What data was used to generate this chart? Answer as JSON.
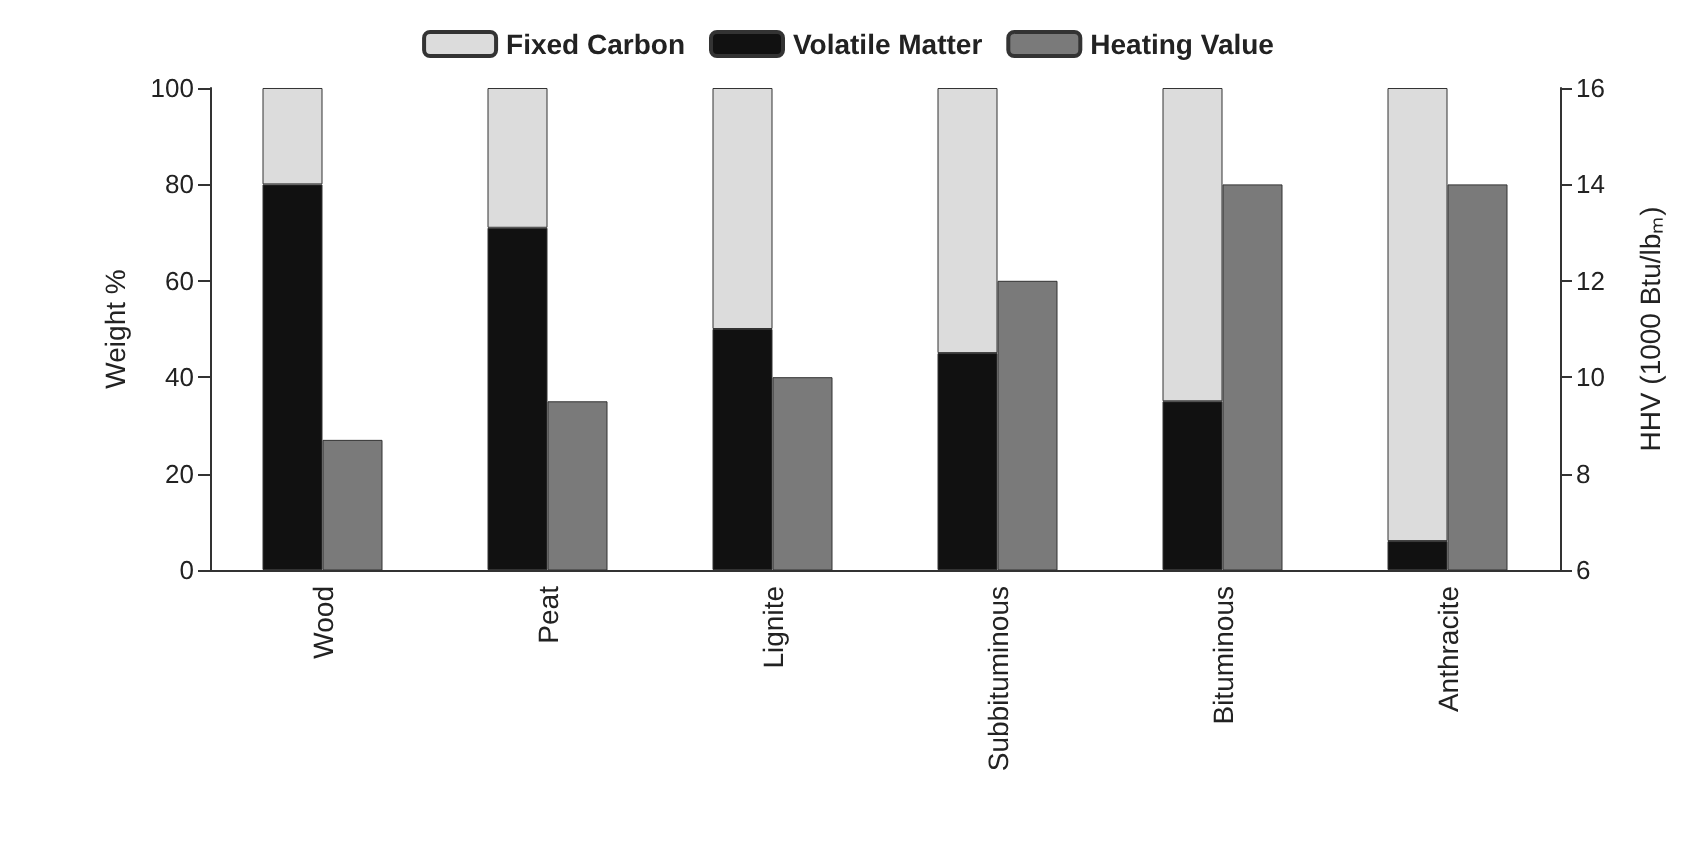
{
  "chart_data": {
    "type": "bar",
    "stacked": true,
    "categories": [
      "Wood",
      "Peat",
      "Lignite",
      "Subbituminous",
      "Bituminous",
      "Anthracite"
    ],
    "ylabel": "Weight %",
    "y2label": "HHV (1000 Btu/lbₘ)",
    "ylim": [
      0,
      100
    ],
    "yticks": [
      0,
      20,
      40,
      60,
      80,
      100
    ],
    "y2lim": [
      6,
      16
    ],
    "y2ticks": [
      6,
      8,
      10,
      12,
      14,
      16
    ],
    "legend": "top",
    "grid": false,
    "series": [
      {
        "name": "Volatile Matter",
        "color": "#111111",
        "values": [
          80,
          71,
          50,
          45,
          35,
          6
        ]
      },
      {
        "name": "Fixed Carbon",
        "color": "#dcdcdc",
        "values": [
          20,
          29,
          50,
          55,
          65,
          94
        ]
      },
      {
        "name": "Heating Value",
        "color": "#7a7a7a",
        "type": "bar",
        "axis": "y2",
        "values": [
          8.7,
          9.5,
          10.0,
          12.0,
          14.0,
          14.0
        ]
      }
    ]
  }
}
